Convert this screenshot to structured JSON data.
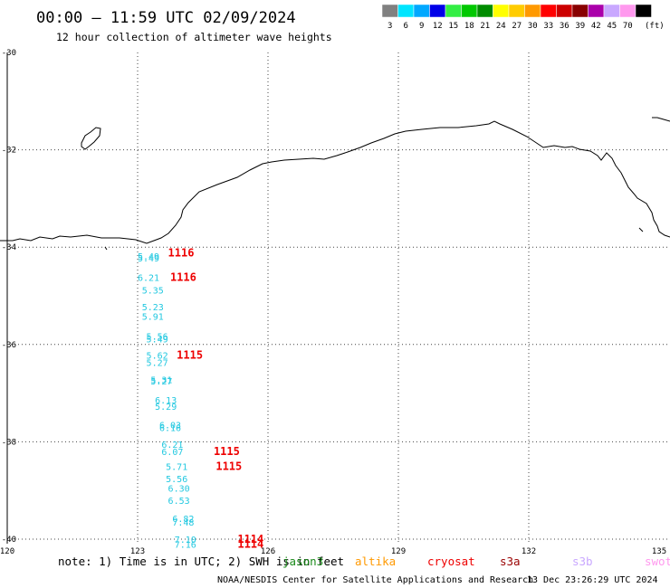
{
  "header": {
    "title": "00:00 – 11:59 UTC 02/09/2024",
    "subtitle": "12 hour collection of altimeter wave heights"
  },
  "legend": {
    "unit_label": "(ft)",
    "bins": [
      {
        "color": "#808080",
        "label": "3"
      },
      {
        "color": "#00e5ff",
        "label": "6"
      },
      {
        "color": "#00a8ff",
        "label": "9"
      },
      {
        "color": "#0000e8",
        "label": "12"
      },
      {
        "color": "#33ee44",
        "label": "15"
      },
      {
        "color": "#00c800",
        "label": "18"
      },
      {
        "color": "#008c00",
        "label": "21"
      },
      {
        "color": "#ffff00",
        "label": "24"
      },
      {
        "color": "#ffcc00",
        "label": "27"
      },
      {
        "color": "#ff9900",
        "label": "30"
      },
      {
        "color": "#ff0000",
        "label": "33"
      },
      {
        "color": "#cc0000",
        "label": "36"
      },
      {
        "color": "#880000",
        "label": "39"
      },
      {
        "color": "#aa00aa",
        "label": "42"
      },
      {
        "color": "#c9a8ff",
        "label": "45"
      },
      {
        "color": "#ff99ee",
        "label": "70"
      },
      {
        "color": "#000000",
        "label": ""
      }
    ]
  },
  "map": {
    "lon_range": [
      120,
      135
    ],
    "lat_range": [
      -40,
      -30
    ],
    "x_ticks": [
      {
        "value": 120,
        "label": "120"
      },
      {
        "value": 123,
        "label": "123"
      },
      {
        "value": 126,
        "label": "126"
      },
      {
        "value": 129,
        "label": "129"
      },
      {
        "value": 132,
        "label": "132"
      },
      {
        "value": 135,
        "label": "135"
      }
    ],
    "y_ticks": [
      {
        "value": -30,
        "label": "-30"
      },
      {
        "value": -32,
        "label": "-32"
      },
      {
        "value": -34,
        "label": "-34"
      },
      {
        "value": -36,
        "label": "-36"
      },
      {
        "value": -38,
        "label": "-38"
      },
      {
        "value": -40,
        "label": "-40"
      }
    ],
    "grid": true,
    "swh_color": "#22c8e0",
    "pass_color": "#ee0000",
    "swh_readings": [
      {
        "lon": 123.25,
        "lat": -34.18,
        "label": "5.49"
      },
      {
        "lon": 123.25,
        "lat": -34.22,
        "label": "5.49"
      },
      {
        "lon": 123.25,
        "lat": -34.62,
        "label": "6.21"
      },
      {
        "lon": 123.35,
        "lat": -34.88,
        "label": "5.35"
      },
      {
        "lon": 123.35,
        "lat": -35.22,
        "label": "5.23"
      },
      {
        "lon": 123.35,
        "lat": -35.42,
        "label": "5.91"
      },
      {
        "lon": 123.45,
        "lat": -35.83,
        "label": "5.56"
      },
      {
        "lon": 123.45,
        "lat": -35.88,
        "label": "5.49"
      },
      {
        "lon": 123.45,
        "lat": -36.22,
        "label": "5.62"
      },
      {
        "lon": 123.45,
        "lat": -36.37,
        "label": "5.27"
      },
      {
        "lon": 123.55,
        "lat": -36.72,
        "label": "5.31"
      },
      {
        "lon": 123.55,
        "lat": -36.75,
        "label": "5.27"
      },
      {
        "lon": 123.65,
        "lat": -37.14,
        "label": "6.13"
      },
      {
        "lon": 123.65,
        "lat": -37.27,
        "label": "5.29"
      },
      {
        "lon": 123.75,
        "lat": -37.65,
        "label": "6.03"
      },
      {
        "lon": 123.75,
        "lat": -37.7,
        "label": "6.16"
      },
      {
        "lon": 123.8,
        "lat": -38.05,
        "label": "6.21"
      },
      {
        "lon": 123.8,
        "lat": -38.2,
        "label": "6.07"
      },
      {
        "lon": 123.9,
        "lat": -38.5,
        "label": "5.71"
      },
      {
        "lon": 123.9,
        "lat": -38.75,
        "label": "5.56"
      },
      {
        "lon": 123.95,
        "lat": -38.95,
        "label": "6.30"
      },
      {
        "lon": 123.95,
        "lat": -39.2,
        "label": "6.53"
      },
      {
        "lon": 124.05,
        "lat": -39.57,
        "label": "6.82"
      },
      {
        "lon": 124.05,
        "lat": -39.65,
        "label": "7.48"
      },
      {
        "lon": 124.1,
        "lat": -40.0,
        "label": "7.10"
      },
      {
        "lon": 124.1,
        "lat": -40.1,
        "label": "7.16"
      }
    ],
    "pass_labels": [
      {
        "lon": 124.0,
        "lat": -34.12,
        "label": "1116"
      },
      {
        "lon": 124.05,
        "lat": -34.62,
        "label": "1116"
      },
      {
        "lon": 124.2,
        "lat": -36.22,
        "label": "1115"
      },
      {
        "lon": 125.05,
        "lat": -38.2,
        "label": "1115"
      },
      {
        "lon": 125.1,
        "lat": -38.5,
        "label": "1115"
      },
      {
        "lon": 125.6,
        "lat": -40.0,
        "label": "1114"
      },
      {
        "lon": 125.6,
        "lat": -40.1,
        "label": "1114"
      }
    ]
  },
  "note": {
    "text": "note: 1) Time is in UTC; 2) SWH is in feet",
    "missions": [
      {
        "name": "jason3",
        "color": "#1a8a1a"
      },
      {
        "name": "altika",
        "color": "#ff9900"
      },
      {
        "name": "cryosat",
        "color": "#ee0000"
      },
      {
        "name": "s3a",
        "color": "#990000"
      },
      {
        "name": "s3b",
        "color": "#c9a8ff"
      },
      {
        "name": "swot",
        "color": "#ff99ee"
      }
    ]
  },
  "footer": {
    "credit": "NOAA/NESDIS Center for Satellite Applications and Research",
    "timestamp": "13 Dec 23:26:29 UTC 2024"
  }
}
